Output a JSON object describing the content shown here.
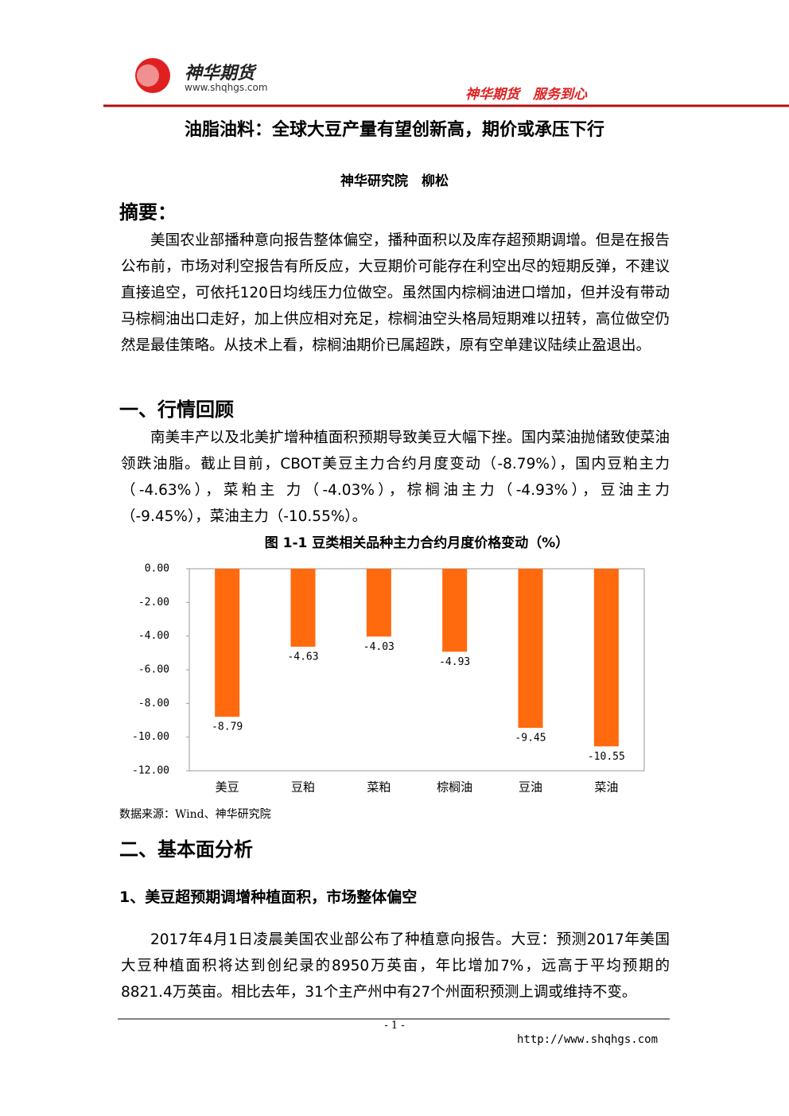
{
  "header": {
    "logo_name": "神华期货",
    "website": "www.shqhgs.com",
    "slogan": "神华期货　服务到心"
  },
  "title": "油脂油料：全球大豆产量有望创新高，期价或承压下行",
  "author": "神华研究院　柳松",
  "abstract": {
    "heading": "摘要：",
    "text": "美国农业部播种意向报告整体偏空，播种面积以及库存超预期调增。但是在报告公布前，市场对利空报告有所反应，大豆期价可能存在利空出尽的短期反弹，不建议直接追空，可依托120日均线压力位做空。虽然国内棕榈油进口增加，但并没有带动马棕榈油出口走好，加上供应相对充足，棕榈油空头格局短期难以扭转，高位做空仍然是最佳策略。从技术上看，棕榈油期价已属超跌，原有空单建议陆续止盈退出。"
  },
  "section1": {
    "heading": "一、行情回顾",
    "text": "南美丰产以及北美扩增种植面积预期导致美豆大幅下挫。国内菜油抛储致使菜油领跌油脂。截止目前，CBOT美豆主力合约月度变动（-8.79%），国内豆粕主力（-4.63%），菜粕主 力（-4.03%），棕榈油主力（-4.93%），豆油主力 （-9.45%），菜油主力（-10.55%）。"
  },
  "chart_data": {
    "type": "bar",
    "title": "图 1-1 豆类相关品种主力合约月度价格变动（%）",
    "categories": [
      "美豆",
      "豆粕",
      "菜粕",
      "棕榈油",
      "豆油",
      "菜油"
    ],
    "values": [
      -8.79,
      -4.63,
      -4.03,
      -4.93,
      -9.45,
      -10.55
    ],
    "color": "#ff6a0e",
    "ylim": [
      -12,
      0
    ],
    "yticks": [
      {
        "value": 0,
        "label": "0.00"
      },
      {
        "value": -2,
        "label": "-2.00"
      },
      {
        "value": -4,
        "label": "-4.00"
      },
      {
        "value": -6,
        "label": "-6.00"
      },
      {
        "value": -8,
        "label": "-8.00"
      },
      {
        "value": -10,
        "label": "-10.00"
      },
      {
        "value": -12,
        "label": "-12.00"
      }
    ],
    "source": "数据来源：Wind、神华研究院"
  },
  "section2": {
    "heading": "二、基本面分析",
    "subheading": "1、美豆超预期调增种植面积，市场整体偏空",
    "text": "2017年4月1日凌晨美国农业部公布了种植意向报告。大豆：预测2017年美国大豆种植面积将达到创纪录的8950万英亩，年比增加7%，远高于平均预期的8821.4万英亩。相比去年，31个主产州中有27个州面积预测上调或维持不变。"
  },
  "footer": {
    "page": "- 1 -",
    "url": "http://www.shqhgs.com"
  }
}
